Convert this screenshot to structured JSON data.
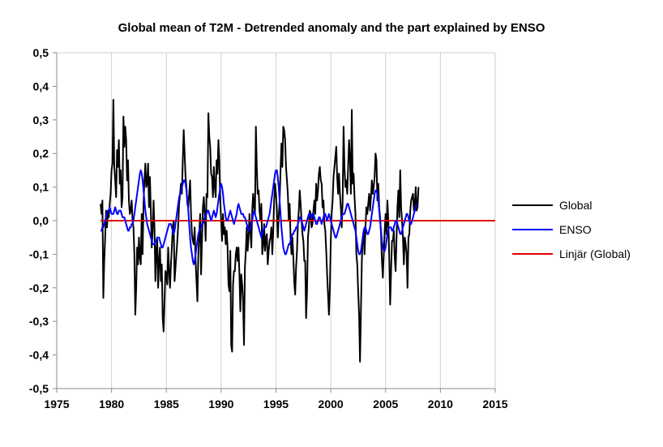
{
  "chart_data": {
    "type": "line",
    "title": "Global mean of T2M  -  Detrended anomaly and the part explained by ENSO",
    "xlabel": "",
    "ylabel": "",
    "xlim": [
      1975,
      2015
    ],
    "ylim": [
      -0.5,
      0.5
    ],
    "x_ticks": [
      1975,
      1980,
      1985,
      1990,
      1995,
      2000,
      2005,
      2010,
      2015
    ],
    "x_tick_labels": [
      "1975",
      "1980",
      "1985",
      "1990",
      "1995",
      "2000",
      "2005",
      "2010",
      "2015"
    ],
    "y_ticks": [
      -0.5,
      -0.4,
      -0.3,
      -0.2,
      -0.1,
      0.0,
      0.1,
      0.2,
      0.3,
      0.4,
      0.5
    ],
    "y_tick_labels": [
      "-0,5",
      "-0,4",
      "-0,3",
      "-0,2",
      "-0,1",
      "0,0",
      "0,1",
      "0,2",
      "0,3",
      "0,4",
      "0,5"
    ],
    "grid": "vertical",
    "legend_position": "right",
    "series": [
      {
        "name": "Global",
        "color": "#000000",
        "x_start": 1979.0,
        "x_step": 0.08333,
        "values": [
          0.05,
          0.02,
          0.06,
          -0.23,
          -0.12,
          -0.05,
          0.03,
          -0.02,
          0.03,
          0.01,
          0.05,
          0.08,
          0.15,
          0.17,
          0.36,
          0.16,
          0.12,
          0.07,
          0.21,
          0.16,
          0.24,
          0.11,
          0.15,
          0.04,
          0.07,
          0.31,
          0.22,
          0.28,
          0.24,
          0.12,
          0.18,
          0.06,
          0.02,
          0.03,
          0.06,
          0.0,
          -0.02,
          -0.1,
          -0.28,
          -0.2,
          -0.08,
          -0.13,
          -0.05,
          -0.11,
          -0.13,
          0.02,
          -0.1,
          0.05,
          0.12,
          0.17,
          0.1,
          0.11,
          0.17,
          0.04,
          0.13,
          0.03,
          -0.08,
          -0.03,
          0.06,
          -0.02,
          -0.18,
          -0.09,
          -0.05,
          -0.2,
          -0.12,
          -0.08,
          -0.18,
          -0.13,
          -0.29,
          -0.33,
          -0.24,
          -0.15,
          -0.16,
          -0.19,
          -0.08,
          -0.15,
          -0.2,
          -0.13,
          -0.08,
          -0.02,
          0.0,
          -0.18,
          -0.14,
          -0.1,
          -0.06,
          -0.01,
          0.05,
          0.08,
          0.11,
          0.08,
          0.18,
          0.27,
          0.2,
          0.13,
          0.1,
          0.05,
          0.04,
          0.08,
          0.12,
          0.02,
          -0.04,
          -0.06,
          -0.07,
          -0.02,
          -0.12,
          -0.18,
          -0.24,
          -0.1,
          -0.04,
          0.02,
          -0.16,
          -0.06,
          0.04,
          0.07,
          0.02,
          -0.06,
          0.08,
          0.07,
          0.32,
          0.25,
          0.22,
          0.14,
          0.13,
          0.07,
          0.16,
          0.1,
          0.07,
          0.18,
          0.14,
          0.24,
          0.18,
          0.06,
          0.0,
          -0.06,
          0.02,
          -0.04,
          -0.02,
          -0.07,
          -0.03,
          -0.08,
          -0.19,
          -0.21,
          -0.09,
          -0.37,
          -0.39,
          -0.19,
          -0.15,
          -0.15,
          -0.1,
          -0.08,
          -0.12,
          -0.08,
          -0.16,
          -0.27,
          -0.16,
          -0.19,
          -0.24,
          -0.37,
          -0.14,
          -0.09,
          -0.02,
          -0.09,
          -0.05,
          0.02,
          -0.03,
          -0.08,
          0.03,
          0.08,
          0.04,
          0.02,
          0.28,
          0.16,
          0.08,
          0.09,
          0.03,
          0.0,
          0.05,
          -0.1,
          -0.07,
          -0.01,
          -0.09,
          -0.05,
          -0.04,
          -0.13,
          -0.09,
          -0.06,
          -0.05,
          -0.02,
          -0.1,
          -0.03,
          0.06,
          0.11,
          0.08,
          0.03,
          -0.05,
          0.01,
          0.06,
          0.15,
          0.23,
          0.16,
          0.28,
          0.27,
          0.24,
          0.16,
          0.12,
          0.08,
          0.0,
          0.05,
          -0.05,
          -0.1,
          -0.05,
          -0.11,
          -0.18,
          -0.22,
          -0.14,
          -0.09,
          -0.01,
          0.03,
          0.09,
          0.05,
          0.0,
          -0.04,
          -0.06,
          -0.12,
          -0.12,
          -0.29,
          -0.21,
          -0.05,
          -0.02,
          0.03,
          0.02,
          -0.02,
          -0.01,
          0.03,
          0.06,
          0.02,
          0.11,
          0.06,
          0.09,
          0.14,
          0.16,
          0.12,
          0.11,
          0.04,
          0.06,
          -0.01,
          -0.03,
          -0.09,
          -0.16,
          -0.22,
          -0.28,
          -0.2,
          -0.06,
          0.02,
          0.06,
          0.13,
          0.16,
          0.19,
          0.22,
          0.13,
          0.08,
          0.14,
          0.08,
          0.04,
          -0.02,
          0.06,
          0.28,
          0.16,
          0.1,
          0.12,
          0.08,
          0.16,
          0.24,
          0.18,
          0.08,
          0.33,
          0.11,
          0.14,
          0.07,
          0.02,
          -0.1,
          -0.13,
          -0.21,
          -0.28,
          -0.42,
          -0.27,
          -0.12,
          -0.05,
          -0.03,
          -0.1,
          -0.02,
          0.04,
          0.02,
          0.05,
          0.08,
          0.03,
          0.07,
          0.12,
          0.08,
          0.1,
          0.13,
          0.2,
          0.18,
          0.06,
          0.11,
          0.04,
          0.01,
          -0.04,
          -0.12,
          -0.17,
          -0.1,
          -0.03,
          0.02,
          -0.04,
          0.06,
          0.0,
          -0.11,
          -0.25,
          -0.15,
          -0.06,
          -0.06,
          -0.03,
          -0.11,
          -0.15,
          -0.05,
          0.04,
          0.09,
          0.01,
          0.15,
          0.04,
          0.0,
          -0.05,
          -0.13,
          -0.05,
          -0.07,
          -0.1,
          -0.2,
          -0.05,
          -0.04,
          0.03,
          0.06,
          0.07,
          0.08,
          0.03,
          0.05,
          0.1,
          0.03,
          0.04,
          0.1
        ]
      },
      {
        "name": "ENSO",
        "color": "#0000ff",
        "x_start": 1979.0,
        "x_step": 0.08333,
        "values": [
          -0.03,
          -0.03,
          -0.02,
          -0.02,
          -0.01,
          0.0,
          0.01,
          0.02,
          0.03,
          0.03,
          0.04,
          0.03,
          0.02,
          0.02,
          0.02,
          0.03,
          0.04,
          0.03,
          0.02,
          0.02,
          0.03,
          0.03,
          0.03,
          0.02,
          0.01,
          0.01,
          0.01,
          0.0,
          -0.01,
          -0.02,
          -0.03,
          -0.03,
          -0.02,
          -0.02,
          -0.01,
          -0.01,
          0.0,
          0.02,
          0.04,
          0.06,
          0.08,
          0.1,
          0.12,
          0.14,
          0.15,
          0.14,
          0.12,
          0.09,
          0.06,
          0.03,
          0.01,
          -0.01,
          -0.02,
          -0.03,
          -0.04,
          -0.05,
          -0.06,
          -0.07,
          -0.07,
          -0.07,
          -0.06,
          -0.06,
          -0.05,
          -0.05,
          -0.05,
          -0.06,
          -0.07,
          -0.08,
          -0.08,
          -0.07,
          -0.06,
          -0.05,
          -0.04,
          -0.03,
          -0.02,
          -0.01,
          -0.01,
          -0.01,
          -0.02,
          -0.03,
          -0.04,
          -0.03,
          -0.01,
          0.01,
          0.03,
          0.05,
          0.07,
          0.08,
          0.09,
          0.1,
          0.11,
          0.12,
          0.12,
          0.11,
          0.09,
          0.06,
          0.03,
          -0.01,
          -0.05,
          -0.08,
          -0.1,
          -0.12,
          -0.13,
          -0.12,
          -0.1,
          -0.08,
          -0.06,
          -0.04,
          -0.03,
          -0.02,
          -0.02,
          -0.01,
          -0.01,
          0.0,
          0.01,
          0.02,
          0.02,
          0.03,
          0.03,
          0.02,
          0.01,
          0.0,
          0.01,
          0.02,
          0.03,
          0.02,
          0.01,
          0.02,
          0.04,
          0.06,
          0.08,
          0.1,
          0.11,
          0.1,
          0.08,
          0.05,
          0.03,
          0.01,
          0.0,
          0.0,
          0.01,
          0.02,
          0.03,
          0.02,
          0.01,
          0.0,
          -0.01,
          0.0,
          0.01,
          0.02,
          0.04,
          0.05,
          0.04,
          0.03,
          0.02,
          0.02,
          0.02,
          0.01,
          0.01,
          0.0,
          -0.01,
          -0.02,
          -0.03,
          -0.03,
          -0.02,
          -0.01,
          0.0,
          0.02,
          0.03,
          0.02,
          0.01,
          0.0,
          -0.01,
          -0.02,
          -0.03,
          -0.04,
          -0.05,
          -0.04,
          -0.03,
          -0.02,
          -0.02,
          -0.02,
          -0.01,
          0.0,
          0.01,
          0.02,
          0.04,
          0.06,
          0.08,
          0.1,
          0.12,
          0.14,
          0.15,
          0.15,
          0.13,
          0.1,
          0.06,
          0.02,
          -0.02,
          -0.05,
          -0.08,
          -0.09,
          -0.1,
          -0.1,
          -0.09,
          -0.08,
          -0.07,
          -0.07,
          -0.06,
          -0.05,
          -0.04,
          -0.04,
          -0.03,
          -0.03,
          -0.02,
          -0.02,
          -0.01,
          0.0,
          0.01,
          0.01,
          0.0,
          -0.01,
          -0.02,
          -0.03,
          -0.02,
          -0.01,
          0.0,
          0.01,
          0.02,
          0.02,
          0.01,
          0.01,
          0.02,
          0.02,
          0.01,
          0.0,
          -0.01,
          -0.01,
          0.0,
          0.01,
          0.01,
          0.0,
          -0.01,
          0.0,
          0.01,
          0.02,
          0.02,
          0.01,
          0.0,
          0.01,
          0.02,
          0.01,
          0.0,
          -0.01,
          -0.02,
          -0.03,
          -0.04,
          -0.05,
          -0.05,
          -0.04,
          -0.03,
          -0.02,
          -0.01,
          0.0,
          0.01,
          0.02,
          0.02,
          0.02,
          0.03,
          0.04,
          0.05,
          0.05,
          0.04,
          0.03,
          0.02,
          0.01,
          0.0,
          -0.01,
          -0.02,
          -0.03,
          -0.05,
          -0.07,
          -0.09,
          -0.1,
          -0.1,
          -0.09,
          -0.07,
          -0.05,
          -0.03,
          -0.02,
          -0.02,
          -0.03,
          -0.04,
          -0.04,
          -0.03,
          -0.02,
          0.0,
          0.02,
          0.04,
          0.06,
          0.08,
          0.09,
          0.09,
          0.08,
          0.06,
          0.03,
          0.0,
          -0.03,
          -0.06,
          -0.08,
          -0.09,
          -0.09,
          -0.08,
          -0.06,
          -0.04,
          -0.03,
          -0.02,
          -0.02,
          -0.02,
          -0.03,
          -0.03,
          -0.02,
          -0.01,
          0.0,
          0.0,
          -0.01,
          -0.02,
          -0.03,
          -0.04,
          -0.04,
          -0.03,
          -0.02,
          -0.01,
          0.0,
          0.01,
          0.02,
          0.02,
          0.01,
          0.0,
          -0.01,
          -0.01,
          0.0,
          0.01,
          0.02,
          0.03,
          0.04,
          0.05
        ]
      },
      {
        "name": "Linjär (Global)",
        "color": "#e00000",
        "x": [
          1979.0,
          2015.0
        ],
        "values": [
          0.0,
          0.0
        ]
      }
    ]
  }
}
